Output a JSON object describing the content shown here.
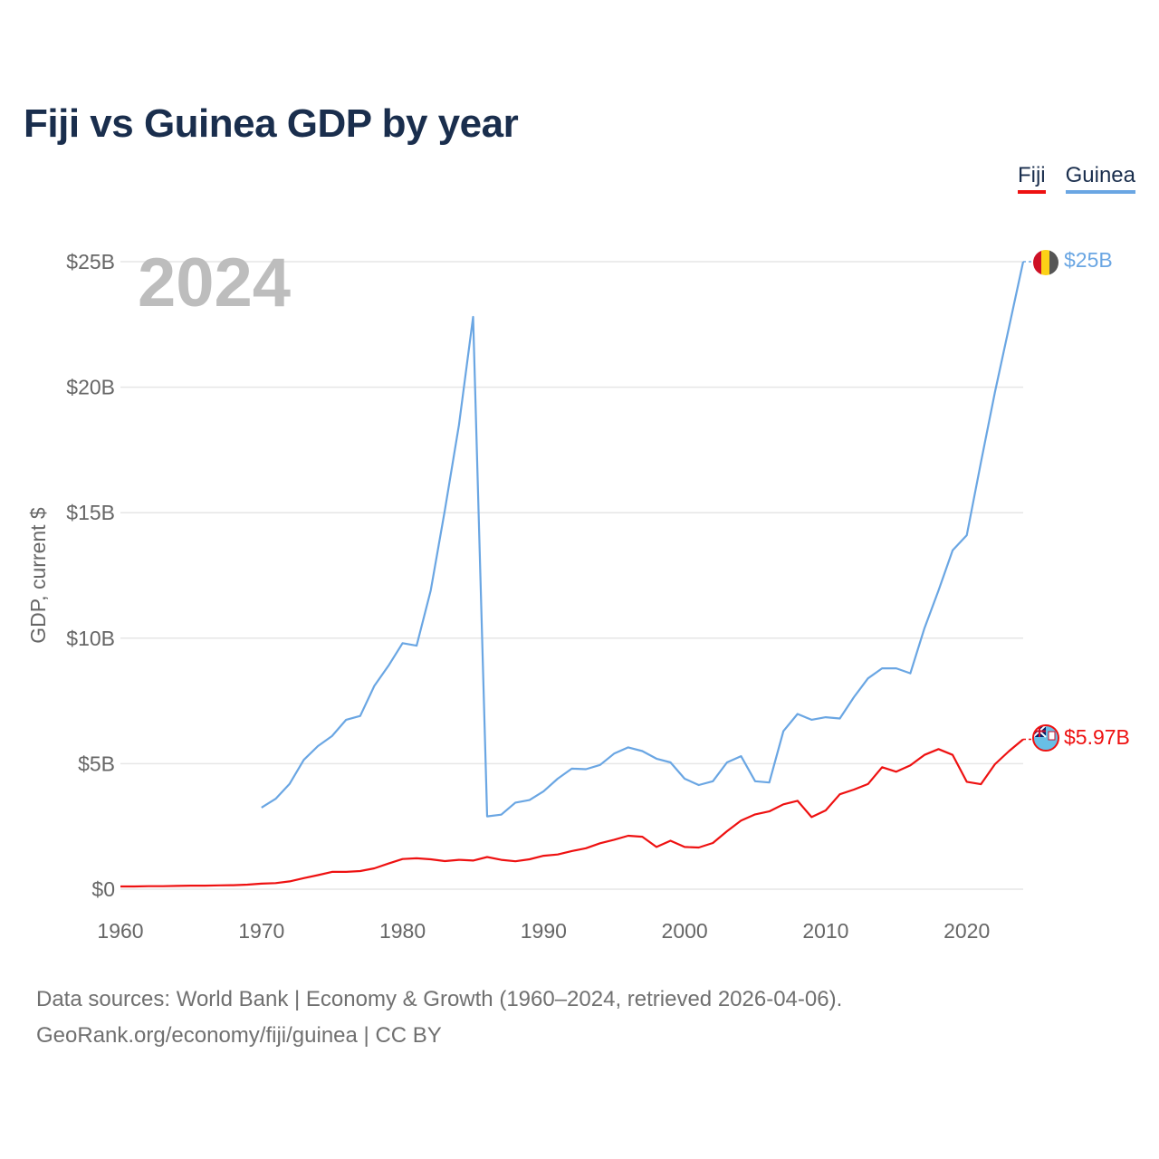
{
  "header": {
    "title": "Fiji vs Guinea GDP by year"
  },
  "legend": {
    "fiji": "Fiji",
    "guinea": "Guinea"
  },
  "footer": {
    "line1": "Data sources: World Bank | Economy & Growth (1960–2024, retrieved 2026-04-06).",
    "line2": "GeoRank.org/economy/fiji/guinea | CC BY"
  },
  "colors": {
    "fiji": "#ee1111",
    "guinea": "#6aa6e3",
    "title": "#1a2e4d",
    "grid": "#e6e6e6",
    "axis_text": "#666666",
    "year_label": "#bdbdbd"
  },
  "chart_data": {
    "type": "line",
    "title": "Fiji vs Guinea GDP by year",
    "year_label": "2024",
    "ylabel": "GDP, current $",
    "xlabel": "",
    "xlim": [
      1960,
      2024
    ],
    "ylim": [
      0,
      25
    ],
    "unit": "billion USD",
    "x_ticks": [
      1960,
      1970,
      1980,
      1990,
      2000,
      2010,
      2020
    ],
    "y_ticks": [
      0,
      5,
      10,
      15,
      20,
      25
    ],
    "y_tick_labels": [
      "$0",
      "$5B",
      "$10B",
      "$15B",
      "$20B",
      "$25B"
    ],
    "end_labels": {
      "guinea": "$25B",
      "fiji": "$5.97B"
    },
    "series": [
      {
        "name": "Guinea",
        "key": "guinea",
        "start_year": 1970,
        "values": [
          3.25,
          3.6,
          4.2,
          5.15,
          5.7,
          6.1,
          6.75,
          6.9,
          8.1,
          8.9,
          9.8,
          9.7,
          11.9,
          15.1,
          18.5,
          22.8,
          2.9,
          2.97,
          3.45,
          3.55,
          3.9,
          4.4,
          4.8,
          4.78,
          4.95,
          5.4,
          5.65,
          5.5,
          5.2,
          5.05,
          4.4,
          4.15,
          4.3,
          5.05,
          5.3,
          4.3,
          4.25,
          6.3,
          6.98,
          6.75,
          6.85,
          6.8,
          7.65,
          8.4,
          8.8,
          8.8,
          8.6,
          10.4,
          11.9,
          13.5,
          14.1,
          17.0,
          19.8,
          22.4,
          25.0
        ]
      },
      {
        "name": "Fiji",
        "key": "fiji",
        "start_year": 1960,
        "values": [
          0.11,
          0.11,
          0.12,
          0.12,
          0.13,
          0.14,
          0.14,
          0.15,
          0.16,
          0.18,
          0.22,
          0.24,
          0.31,
          0.44,
          0.56,
          0.69,
          0.69,
          0.72,
          0.83,
          1.02,
          1.2,
          1.23,
          1.19,
          1.12,
          1.17,
          1.14,
          1.28,
          1.17,
          1.11,
          1.19,
          1.33,
          1.38,
          1.52,
          1.63,
          1.83,
          1.97,
          2.13,
          2.09,
          1.68,
          1.93,
          1.68,
          1.66,
          1.84,
          2.31,
          2.73,
          2.98,
          3.1,
          3.38,
          3.52,
          2.87,
          3.14,
          3.78,
          3.97,
          4.19,
          4.86,
          4.68,
          4.93,
          5.35,
          5.58,
          5.35,
          4.28,
          4.18,
          4.98,
          5.5,
          5.97
        ]
      }
    ]
  }
}
